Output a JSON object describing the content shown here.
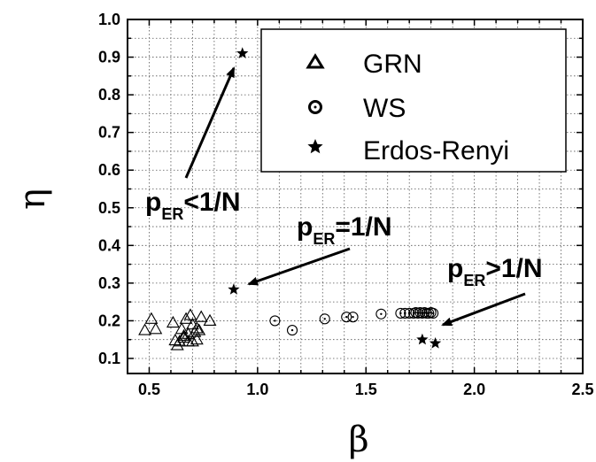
{
  "chart_data": {
    "type": "scatter",
    "xlabel": "β",
    "ylabel": "η",
    "xlim": [
      0.4,
      2.5
    ],
    "ylim": [
      0.06,
      1.0
    ],
    "x_ticks": [
      "0.5",
      "1.0",
      "1.5",
      "2.0",
      "2.5"
    ],
    "y_ticks": [
      "0.1",
      "0.2",
      "0.3",
      "0.4",
      "0.5",
      "0.6",
      "0.7",
      "0.8",
      "0.9",
      "1.0"
    ],
    "grid": true,
    "legend_position": "top-right",
    "series": [
      {
        "name": "GRN",
        "marker": "open-triangle",
        "x": [
          0.48,
          0.51,
          0.53,
          0.61,
          0.62,
          0.63,
          0.64,
          0.65,
          0.66,
          0.67,
          0.68,
          0.69,
          0.7,
          0.7,
          0.71,
          0.72,
          0.72,
          0.73,
          0.74,
          0.78,
          0.68,
          0.66
        ],
        "y": [
          0.175,
          0.205,
          0.178,
          0.195,
          0.148,
          0.135,
          0.145,
          0.178,
          0.155,
          0.205,
          0.165,
          0.215,
          0.145,
          0.19,
          0.17,
          0.15,
          0.18,
          0.175,
          0.21,
          0.2,
          0.145,
          0.16
        ]
      },
      {
        "name": "WS",
        "marker": "open-circle",
        "x": [
          1.08,
          1.16,
          1.31,
          1.41,
          1.44,
          1.57,
          1.66,
          1.68,
          1.7,
          1.72,
          1.73,
          1.74,
          1.75,
          1.76,
          1.77,
          1.78,
          1.79,
          1.8,
          1.81
        ],
        "y": [
          0.2,
          0.175,
          0.205,
          0.21,
          0.21,
          0.218,
          0.22,
          0.22,
          0.22,
          0.22,
          0.222,
          0.22,
          0.222,
          0.22,
          0.222,
          0.22,
          0.22,
          0.222,
          0.22
        ]
      },
      {
        "name": "Erdos-Renyi",
        "marker": "star",
        "x": [
          0.93,
          0.89,
          1.76,
          1.82
        ],
        "y": [
          0.91,
          0.283,
          0.15,
          0.14
        ]
      }
    ],
    "annotations": [
      {
        "label": "p",
        "sub": "ER",
        "rest": "<1/N"
      },
      {
        "label": "p",
        "sub": "ER",
        "rest": "=1/N"
      },
      {
        "label": "p",
        "sub": "ER",
        "rest": ">1/N"
      }
    ]
  }
}
